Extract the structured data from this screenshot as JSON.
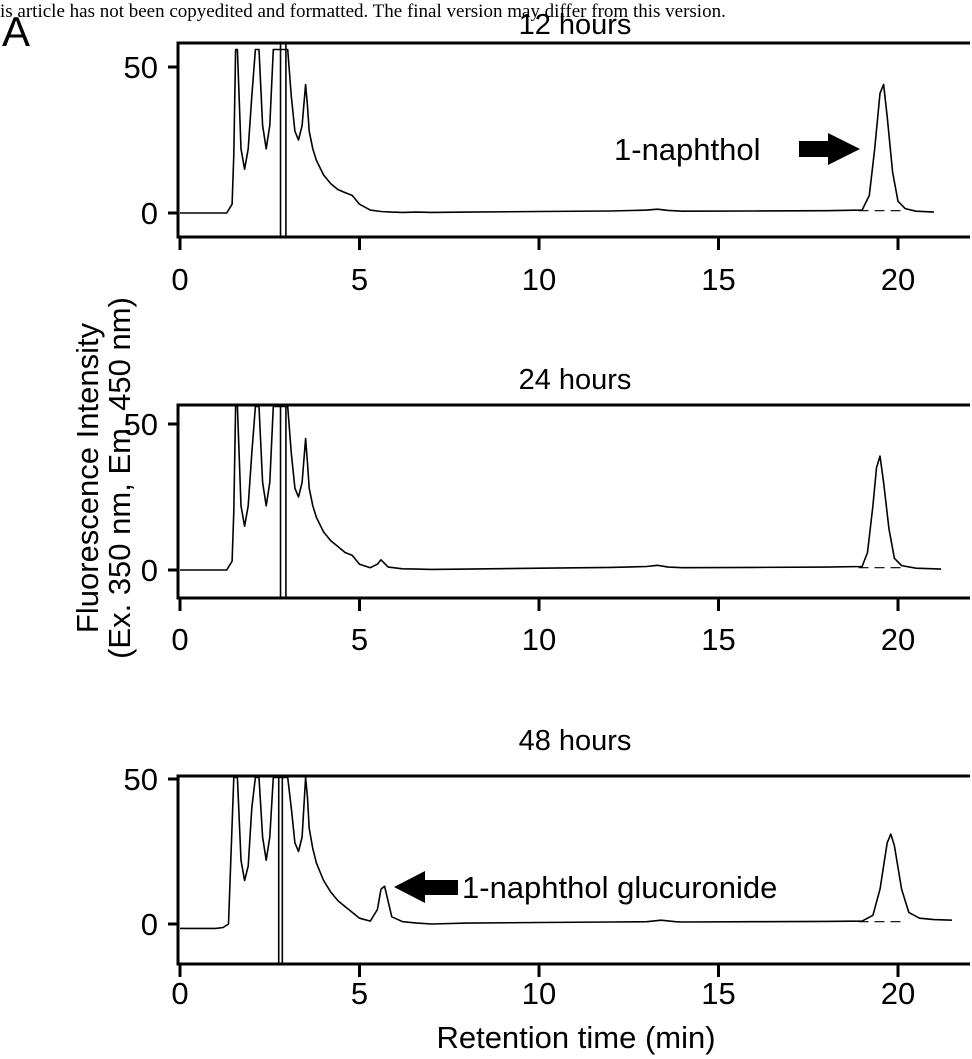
{
  "banner": "is article has not been copyedited and formatted. The final version may differ from this version.",
  "panel_label": "A",
  "chart_data": {
    "type": "line",
    "xlabel": "Retention time (min)",
    "ylabel_line1": "Fluorescence Intensity",
    "ylabel_line2": "(Ex. 350 nm, Em. 450 nm)",
    "xlim": [
      0,
      22
    ],
    "ylim": [
      -8,
      56
    ],
    "xticks": [
      0,
      5,
      10,
      15,
      20
    ],
    "yticks": [
      0,
      50
    ],
    "panels": [
      {
        "title": "12 hours",
        "injection_marks": [
          2.8,
          2.95
        ],
        "series": [
          {
            "x": [
              0,
              1.3,
              1.45,
              1.5,
              1.55,
              1.6,
              1.7,
              1.8,
              1.9,
              2.0,
              2.1,
              2.2,
              2.3,
              2.4,
              2.5,
              2.6,
              2.7,
              3.0,
              3.1,
              3.2,
              3.3,
              3.4,
              3.5,
              3.55,
              3.6,
              3.7,
              3.8,
              4.0,
              4.2,
              4.4,
              4.6,
              4.8,
              5.0,
              5.3,
              5.6,
              5.9,
              6.2,
              6.6,
              7,
              8,
              10,
              12,
              13,
              13.3,
              13.6,
              14,
              16,
              18,
              19.0,
              19.2,
              19.35,
              19.5,
              19.6,
              19.7,
              19.85,
              20.0,
              20.2,
              20.5,
              21
            ],
            "y": [
              0,
              0,
              3,
              20,
              56,
              56,
              22,
              15,
              22,
              40,
              56,
              56,
              30,
              22,
              30,
              56,
              56,
              56,
              40,
              28,
              25,
              30,
              44,
              37,
              28,
              22,
              18,
              13,
              10,
              8,
              7,
              6,
              3,
              1,
              0.5,
              0.3,
              0.2,
              0.3,
              0.2,
              0.3,
              0.5,
              0.7,
              1.0,
              1.3,
              0.9,
              0.6,
              0.7,
              0.8,
              1.0,
              6,
              22,
              41,
              44,
              33,
              14,
              4,
              1.5,
              0.6,
              0.3
            ]
          }
        ],
        "annotations": [
          {
            "text": "1-naphthol",
            "arrow": "right"
          }
        ]
      },
      {
        "title": "24 hours",
        "injection_marks": [
          2.8,
          2.95
        ],
        "series": [
          {
            "x": [
              0,
              1.3,
              1.45,
              1.5,
              1.55,
              1.6,
              1.7,
              1.8,
              1.9,
              2.0,
              2.1,
              2.2,
              2.3,
              2.4,
              2.5,
              2.6,
              2.7,
              3.0,
              3.1,
              3.2,
              3.3,
              3.4,
              3.5,
              3.55,
              3.6,
              3.7,
              3.8,
              4.0,
              4.2,
              4.4,
              4.6,
              4.8,
              5.0,
              5.3,
              5.5,
              5.6,
              5.8,
              6.2,
              6.6,
              7,
              8,
              10,
              12,
              13,
              13.3,
              13.6,
              14,
              16,
              18,
              19.0,
              19.15,
              19.3,
              19.4,
              19.5,
              19.6,
              19.75,
              19.9,
              20.1,
              20.5,
              21.2
            ],
            "y": [
              0,
              0,
              3,
              20,
              56,
              56,
              22,
              15,
              22,
              40,
              56,
              56,
              30,
              22,
              30,
              56,
              56,
              56,
              40,
              28,
              25,
              30,
              45,
              37,
              28,
              22,
              18,
              13,
              10,
              8,
              6,
              5,
              2,
              0.8,
              2,
              3.5,
              1,
              0.4,
              0.3,
              0.2,
              0.3,
              0.6,
              0.9,
              1.2,
              1.6,
              1.0,
              0.8,
              0.9,
              1.0,
              1.2,
              6,
              22,
              35,
              39,
              30,
              14,
              4,
              1.5,
              0.6,
              0.3
            ]
          }
        ],
        "annotations": []
      },
      {
        "title": "48 hours",
        "injection_marks": [
          2.75,
          2.85
        ],
        "series": [
          {
            "x": [
              0,
              0.5,
              1.0,
              1.2,
              1.35,
              1.5,
              1.6,
              1.7,
              1.8,
              1.9,
              2.0,
              2.1,
              2.2,
              2.3,
              2.4,
              2.5,
              2.6,
              2.7,
              3.0,
              3.1,
              3.2,
              3.3,
              3.4,
              3.5,
              3.55,
              3.6,
              3.7,
              3.8,
              4.0,
              4.2,
              4.4,
              4.6,
              4.8,
              5.0,
              5.3,
              5.5,
              5.6,
              5.7,
              5.9,
              6.2,
              6.6,
              7,
              8,
              10,
              12,
              13,
              13.4,
              13.8,
              14,
              16,
              18,
              19.0,
              19.3,
              19.5,
              19.7,
              19.8,
              19.9,
              20.1,
              20.3,
              20.6,
              21,
              21.5
            ],
            "y": [
              -1.5,
              -1.5,
              -1.5,
              -1.2,
              0,
              56,
              56,
              22,
              15,
              20,
              40,
              56,
              56,
              30,
              22,
              30,
              56,
              56,
              56,
              40,
              28,
              25,
              30,
              52,
              44,
              33,
              26,
              21,
              15,
              11,
              8,
              6,
              4,
              2,
              1,
              5,
              12,
              13,
              2.5,
              0.8,
              0.3,
              0,
              0.3,
              0.5,
              0.7,
              0.8,
              1.3,
              0.8,
              0.7,
              0.8,
              0.9,
              1.0,
              3,
              12,
              28,
              31,
              27,
              12,
              4,
              2,
              1.5,
              1.3
            ]
          }
        ],
        "annotations": [
          {
            "text": "1-naphthol glucuronide",
            "arrow": "left"
          }
        ]
      }
    ]
  }
}
